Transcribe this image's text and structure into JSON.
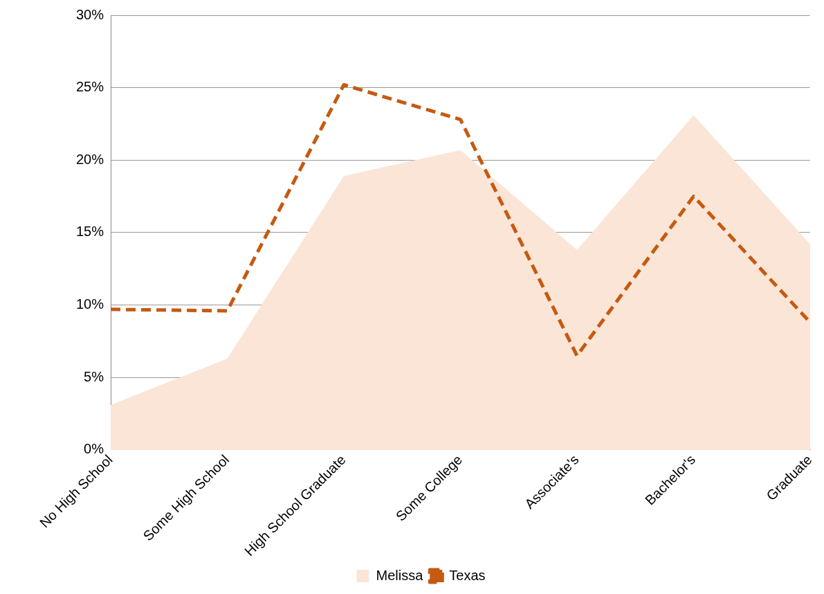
{
  "chart_data": {
    "type": "area",
    "categories": [
      "No High School",
      "Some High School",
      "High School Graduate",
      "Some College",
      "Associate's",
      "Bachelor's",
      "Graduate"
    ],
    "series": [
      {
        "name": "Melissa",
        "color": "#fbe5d6",
        "values": [
          3.1,
          6.3,
          18.9,
          20.7,
          13.8,
          23.1,
          14.2
        ]
      },
      {
        "name": "Texas",
        "type": "line",
        "line_style": "dashed",
        "color": "#c55a11",
        "values": [
          9.7,
          9.6,
          25.2,
          22.8,
          6.5,
          17.5,
          8.8
        ]
      }
    ],
    "ylim": [
      0,
      30
    ],
    "yticks": [
      {
        "value": 0,
        "label": "0%"
      },
      {
        "value": 5,
        "label": "5%"
      },
      {
        "value": 10,
        "label": "10%"
      },
      {
        "value": 15,
        "label": "15%"
      },
      {
        "value": 20,
        "label": "20%"
      },
      {
        "value": 25,
        "label": "25%"
      },
      {
        "value": 30,
        "label": "30%"
      }
    ],
    "grid": "y",
    "legend": "bottom",
    "marker": "none"
  }
}
